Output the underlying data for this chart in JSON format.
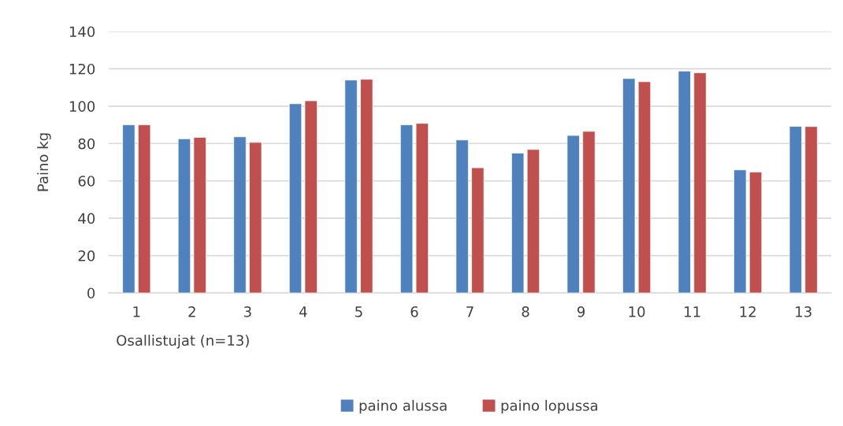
{
  "chart_data": {
    "type": "bar",
    "categories": [
      "1",
      "2",
      "3",
      "4",
      "5",
      "6",
      "7",
      "8",
      "9",
      "10",
      "11",
      "12",
      "13"
    ],
    "series": [
      {
        "name": "paino alussa",
        "color": "#4f81bd",
        "values": [
          90,
          82.5,
          83.6,
          101.3,
          114,
          90,
          81.9,
          74.9,
          84.3,
          114.8,
          118.8,
          65.9,
          89.2
        ]
      },
      {
        "name": "paino lopussa",
        "color": "#c0504d",
        "values": [
          90,
          83.3,
          80.6,
          102.9,
          114.4,
          90.8,
          67,
          76.8,
          86.5,
          113.1,
          117.9,
          64.7,
          89.1
        ]
      }
    ],
    "xlabel": "Osallistujat (n=13)",
    "ylabel": "Paino kg",
    "ylim": [
      0,
      140
    ],
    "yticks": [
      0,
      20,
      40,
      60,
      80,
      100,
      120,
      140
    ],
    "grid": "y",
    "legend": "bottom"
  }
}
